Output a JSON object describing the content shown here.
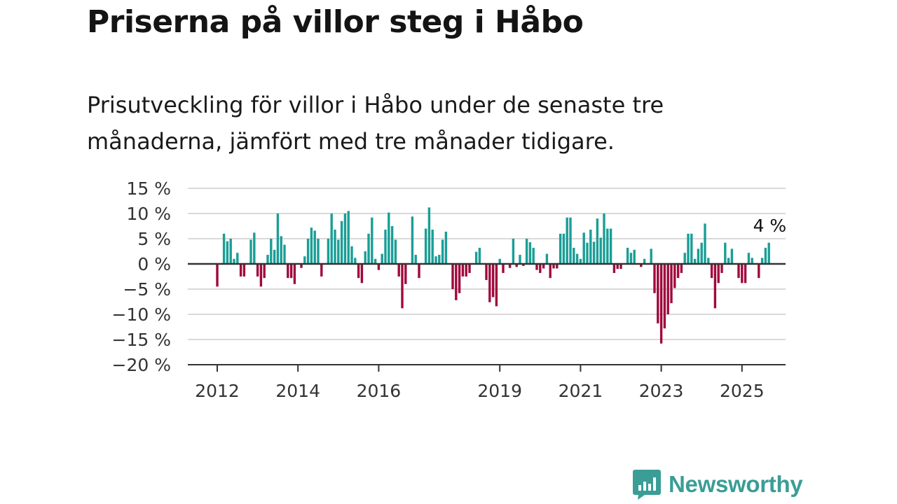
{
  "title": "Priserna på villor steg i Håbo",
  "subtitle": "Prisutveckling för villor i Håbo under de senaste tre månaderna, jämfört med tre månader tidigare.",
  "logo": {
    "text": "Newsworthy",
    "icon": "bar-chart-speech-bubble-icon"
  },
  "colors": {
    "positive": "#1a9e96",
    "negative": "#a0093c",
    "grid": "#d9d9d9",
    "zero": "#333333",
    "brand": "#3a9d96"
  },
  "chart_data": {
    "type": "bar",
    "title": "Priserna på villor steg i Håbo",
    "ylim": [
      -20,
      15
    ],
    "yticks": [
      15,
      10,
      5,
      0,
      -5,
      -10,
      -15,
      -20
    ],
    "ytick_labels": [
      "15 %",
      "10 %",
      "5 %",
      "0 %",
      "−5 %",
      "−10 %",
      "−15 %",
      "−20 %"
    ],
    "xtick_labels": [
      "2012",
      "2014",
      "2016",
      "2019",
      "2021",
      "2023",
      "2025"
    ],
    "xtick_index": [
      0,
      24,
      48,
      84,
      108,
      132,
      156
    ],
    "grid": true,
    "last_label": "4 %",
    "values": [
      -4.5,
      0,
      6,
      4.5,
      5,
      1,
      2.2,
      -2.5,
      -2.5,
      0,
      4.8,
      6.2,
      -2.5,
      -4.5,
      -2.8,
      1.8,
      5,
      2.8,
      10,
      5.5,
      3.8,
      -2.8,
      -2.8,
      -4,
      0,
      -0.8,
      1.5,
      5,
      7.2,
      6.6,
      5,
      -2.5,
      0,
      5,
      10,
      6.8,
      4.8,
      8.5,
      10,
      10.5,
      3.5,
      1.2,
      -2.8,
      -3.8,
      2.5,
      6,
      9.2,
      1,
      -1.2,
      2,
      6.8,
      10.2,
      7.5,
      4.8,
      -2.5,
      -8.8,
      -4,
      0,
      9.4,
      1.8,
      -2.8,
      0,
      7,
      11.2,
      6.8,
      1.5,
      1.8,
      4.8,
      6.4,
      0,
      -5,
      -7.2,
      -5.8,
      -2.5,
      -2.5,
      -1.8,
      0,
      2.4,
      3.2,
      0,
      -3.2,
      -7.6,
      -6.6,
      -8.4,
      1,
      -1.8,
      0,
      -0.8,
      5,
      -0.6,
      1.8,
      -0.4,
      5,
      4.3,
      3.2,
      -1.2,
      -1.8,
      -0.9,
      2,
      -2.8,
      -0.9,
      -0.9,
      6,
      6,
      9.2,
      9.2,
      3.2,
      2,
      1,
      6.2,
      4.2,
      6.8,
      4.4,
      9,
      5.2,
      10,
      7,
      7,
      -1.8,
      -1,
      -1,
      0,
      3.2,
      2.2,
      2.8,
      0,
      -0.6,
      1,
      0,
      3,
      -5.8,
      -11.8,
      -15.8,
      -12.8,
      -10,
      -7.8,
      -4.8,
      -2.8,
      -1.8,
      2.2,
      6,
      6,
      1,
      3,
      4.2,
      8,
      1.2,
      -2.8,
      -8.8,
      -3.8,
      -1.8,
      4.2,
      1.2,
      3,
      0,
      -2.8,
      -3.8,
      -3.8,
      2.2,
      1.2,
      0,
      -2.8,
      1.2,
      3.2,
      4.2
    ]
  }
}
